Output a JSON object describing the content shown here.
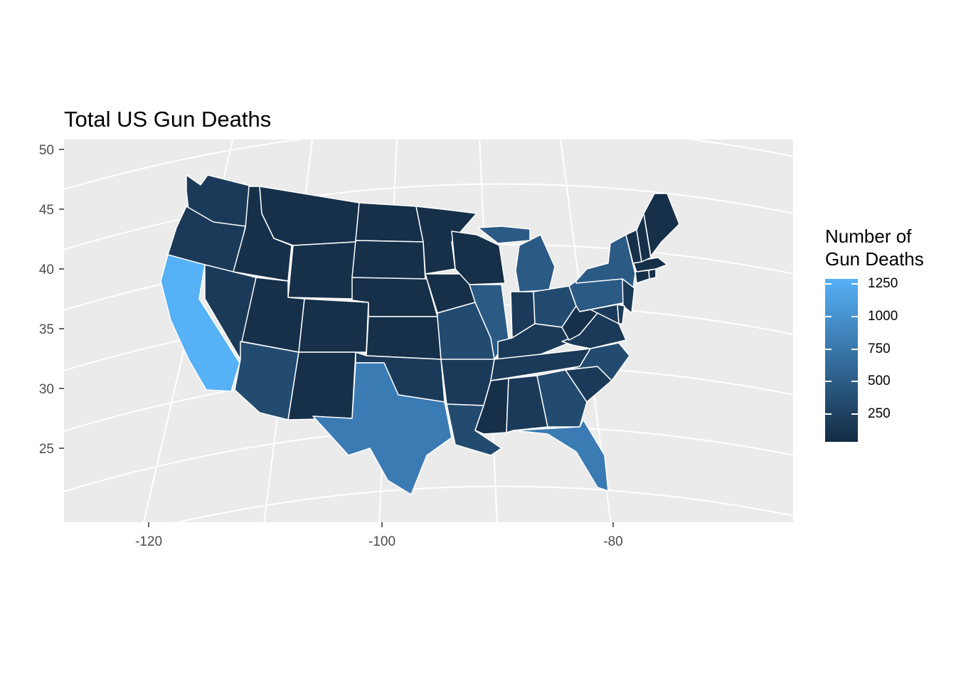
{
  "title": "Total US Gun Deaths",
  "legend": {
    "title_lines": [
      "Number of",
      "Gun Deaths"
    ],
    "color_low": "#132b43",
    "color_high": "#56b1f7",
    "ticks": [
      {
        "value": 250,
        "label": "250"
      },
      {
        "value": 500,
        "label": "500"
      },
      {
        "value": 750,
        "label": "750"
      },
      {
        "value": 1000,
        "label": "1000"
      },
      {
        "value": 1250,
        "label": "1250"
      }
    ]
  },
  "axes": {
    "x_ticks": [
      "-120",
      "-100",
      "-80"
    ],
    "y_ticks": [
      "50",
      "45",
      "40",
      "35",
      "30",
      "25"
    ]
  },
  "colors": {
    "panel_background": "#ebebeb",
    "gridline": "#ffffff",
    "state_border": "#ffffff",
    "fill_darkest": "#16304a",
    "fill_dark": "#1b3a59",
    "fill_medium_dark": "#234b70",
    "fill_medium": "#2b5a85",
    "fill_texas": "#3b7bb4",
    "fill_california": "#56b1f7"
  },
  "states": [
    {
      "name": "Washington",
      "shade": "fill_dark"
    },
    {
      "name": "Oregon",
      "shade": "fill_dark"
    },
    {
      "name": "California",
      "shade": "fill_california"
    },
    {
      "name": "Nevada",
      "shade": "fill_dark"
    },
    {
      "name": "Idaho",
      "shade": "fill_darkest"
    },
    {
      "name": "Montana",
      "shade": "fill_darkest"
    },
    {
      "name": "Wyoming",
      "shade": "fill_darkest"
    },
    {
      "name": "Utah",
      "shade": "fill_darkest"
    },
    {
      "name": "Arizona",
      "shade": "fill_medium_dark"
    },
    {
      "name": "Colorado",
      "shade": "fill_darkest"
    },
    {
      "name": "New Mexico",
      "shade": "fill_darkest"
    },
    {
      "name": "North Dakota",
      "shade": "fill_darkest"
    },
    {
      "name": "South Dakota",
      "shade": "fill_darkest"
    },
    {
      "name": "Nebraska",
      "shade": "fill_darkest"
    },
    {
      "name": "Kansas",
      "shade": "fill_darkest"
    },
    {
      "name": "Oklahoma",
      "shade": "fill_dark"
    },
    {
      "name": "Texas",
      "shade": "fill_texas"
    },
    {
      "name": "Minnesota",
      "shade": "fill_darkest"
    },
    {
      "name": "Iowa",
      "shade": "fill_darkest"
    },
    {
      "name": "Missouri",
      "shade": "fill_medium_dark"
    },
    {
      "name": "Arkansas",
      "shade": "fill_dark"
    },
    {
      "name": "Louisiana",
      "shade": "fill_medium_dark"
    },
    {
      "name": "Wisconsin",
      "shade": "fill_darkest"
    },
    {
      "name": "Illinois",
      "shade": "fill_medium"
    },
    {
      "name": "Michigan",
      "shade": "fill_medium"
    },
    {
      "name": "Indiana",
      "shade": "fill_dark"
    },
    {
      "name": "Ohio",
      "shade": "fill_medium_dark"
    },
    {
      "name": "Kentucky",
      "shade": "fill_dark"
    },
    {
      "name": "Tennessee",
      "shade": "fill_dark"
    },
    {
      "name": "Mississippi",
      "shade": "fill_darkest"
    },
    {
      "name": "Alabama",
      "shade": "fill_dark"
    },
    {
      "name": "Georgia",
      "shade": "fill_medium_dark"
    },
    {
      "name": "Florida",
      "shade": "fill_texas"
    },
    {
      "name": "South Carolina",
      "shade": "fill_dark"
    },
    {
      "name": "North Carolina",
      "shade": "fill_medium_dark"
    },
    {
      "name": "Virginia",
      "shade": "fill_dark"
    },
    {
      "name": "West Virginia",
      "shade": "fill_darkest"
    },
    {
      "name": "Pennsylvania",
      "shade": "fill_medium"
    },
    {
      "name": "New York",
      "shade": "fill_medium"
    },
    {
      "name": "New Jersey",
      "shade": "fill_dark"
    },
    {
      "name": "Maryland",
      "shade": "fill_dark"
    },
    {
      "name": "Delaware",
      "shade": "fill_dark"
    },
    {
      "name": "Connecticut",
      "shade": "fill_darkest"
    },
    {
      "name": "Rhode Island",
      "shade": "fill_darkest"
    },
    {
      "name": "Massachusetts",
      "shade": "fill_darkest"
    },
    {
      "name": "Vermont",
      "shade": "fill_darkest"
    },
    {
      "name": "New Hampshire",
      "shade": "fill_darkest"
    },
    {
      "name": "Maine",
      "shade": "fill_darkest"
    }
  ]
}
